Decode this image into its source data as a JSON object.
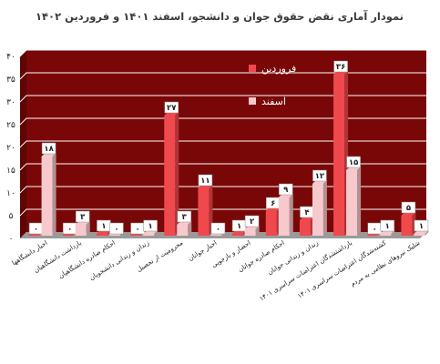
{
  "chart_data": {
    "type": "bar",
    "title": "نمودار آماری نقض حقوق جوان و دانشجو، اسفند ۱۴۰۱ و فروردین ۱۴۰۲",
    "ylim": [
      0,
      40
    ],
    "yticks": [
      "۰",
      "۵",
      "۱۰",
      "۱۵",
      "۲۰",
      "۲۵",
      "۳۰",
      "۳۵",
      "۴۰"
    ],
    "ytick_values": [
      0,
      5,
      10,
      15,
      20,
      25,
      30,
      35,
      40
    ],
    "grid": true,
    "legend_position": "top-right",
    "categories": [
      "اخبار دانشگاهها",
      "بازداشت دانشگاهیان",
      "احکام صادره دانشگاهیان",
      "زندان و زندانی دانشجویان",
      "محرومیت از تحصیل",
      "اخبار جوانان",
      "احضار و بازجویی",
      "احکام صادره جوانان",
      "زندان و زندانی جوانان",
      "بازداشتشدگان اعتراضات سراسری ۱۴۰۱",
      "کشته‌شدگان اعتراضات سراسری ۱۴۰۱",
      "شلیک نیروهای نظامی به مردم"
    ],
    "series": [
      {
        "name": "فروردین",
        "color": "#f0494d",
        "values": [
          0,
          0,
          1,
          0,
          27,
          11,
          1,
          6,
          4,
          36,
          0,
          5
        ],
        "labels": [
          "۰",
          "۰",
          "۱",
          "۰",
          "۲۷",
          "۱۱",
          "۱",
          "۶",
          "۴",
          "۳۶",
          "۰",
          "۵"
        ]
      },
      {
        "name": "اسفند",
        "color": "#f6c9cc",
        "values": [
          18,
          3,
          0,
          1,
          3,
          0,
          2,
          9,
          12,
          15,
          1,
          1
        ],
        "labels": [
          "۱۸",
          "۳",
          "۰",
          "۱",
          "۳",
          "۰",
          "۲",
          "۹",
          "۱۲",
          "۱۵",
          "۱",
          "۱"
        ]
      }
    ]
  },
  "colors": {
    "plot_background": "#7a0707",
    "floor": "#9a9a9a",
    "gridline": "#ffffff"
  }
}
